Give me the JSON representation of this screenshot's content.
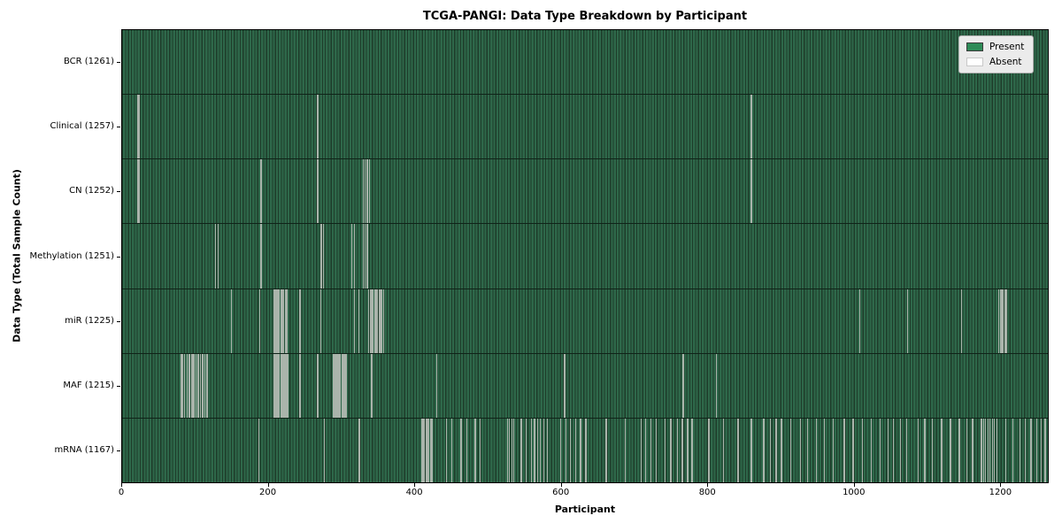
{
  "chart_data": {
    "type": "heatmap",
    "title": "TCGA-PANGI: Data Type Breakdown by Participant",
    "xlabel": "Participant",
    "ylabel": "Data Type (Total Sample Count)",
    "x_ticks": [
      0,
      200,
      400,
      600,
      800,
      1000,
      1200
    ],
    "x_axis_max": 1266,
    "total_participants": 1261,
    "grid": false,
    "legend": {
      "position": "upper right",
      "items": [
        {
          "label": "Present",
          "color": "#2e8b57",
          "border": "#3a3a3a"
        },
        {
          "label": "Absent",
          "color": "#ffffff",
          "border": "#c8c8c8"
        }
      ]
    },
    "colors": {
      "present_fill": "#2e684a",
      "cell_edge": "#1e3c2a",
      "row_divider": "#0f2318",
      "absent_stripe": "#aab4ab",
      "plot_border": "#000000",
      "legend_bg": "#ebebeb"
    },
    "rows": [
      {
        "label": "BCR (1261)",
        "data_type": "BCR",
        "sample_count": 1261,
        "absent_participants": []
      },
      {
        "label": "Clinical (1257)",
        "data_type": "Clinical",
        "sample_count": 1257,
        "absent_participants": [
          20,
          22,
          266,
          858
        ]
      },
      {
        "label": "CN (1252)",
        "data_type": "CN",
        "sample_count": 1252,
        "absent_participants": [
          20,
          22,
          189,
          266,
          328,
          331,
          334,
          337,
          858
        ]
      },
      {
        "label": "Methylation (1251)",
        "data_type": "Methylation",
        "sample_count": 1251,
        "absent_participants": [
          127,
          130,
          189,
          271,
          274,
          313,
          316,
          328,
          331,
          334
        ]
      },
      {
        "label": "miR (1225)",
        "data_type": "miR",
        "sample_count": 1225,
        "absent_participants": [
          148,
          187,
          206,
          208,
          210,
          212,
          214,
          216,
          218,
          220,
          222,
          224,
          242,
          270,
          316,
          322,
          336,
          338,
          340,
          342,
          344,
          346,
          348,
          350,
          352,
          354,
          356,
          1006,
          1071,
          1145,
          1196,
          1198,
          1200,
          1202,
          1204,
          1206
        ]
      },
      {
        "label": "MAF (1215)",
        "data_type": "MAF",
        "sample_count": 1215,
        "absent_participants": [
          80,
          82,
          84,
          88,
          91,
          94,
          96,
          97,
          100,
          103,
          106,
          109,
          112,
          115,
          206,
          207,
          208,
          210,
          212,
          214,
          216,
          218,
          220,
          221,
          222,
          224,
          226,
          242,
          266,
          287,
          289,
          291,
          292,
          293,
          295,
          297,
          299,
          300,
          301,
          303,
          305,
          340,
          429,
          603,
          765,
          810
        ]
      },
      {
        "label": "mRNA (1167)",
        "data_type": "mRNA",
        "sample_count": 1167,
        "absent_participants": [
          186,
          275,
          323,
          408,
          410,
          412,
          414,
          416,
          418,
          420,
          422,
          442,
          449,
          462,
          470,
          481,
          488,
          525,
          528,
          531,
          534,
          544,
          551,
          558,
          562,
          566,
          570,
          575,
          580,
          598,
          605,
          611,
          618,
          625,
          632,
          660,
          686,
          708,
          714,
          721,
          728,
          740,
          748,
          757,
          764,
          771,
          777,
          800,
          820,
          840,
          858,
          875,
          884,
          892,
          899,
          912,
          925,
          935,
          947,
          958,
          970,
          985,
          997,
          1010,
          1022,
          1034,
          1045,
          1052,
          1062,
          1070,
          1086,
          1095,
          1105,
          1118,
          1130,
          1142,
          1152,
          1160,
          1172,
          1175,
          1178,
          1181,
          1184,
          1187,
          1190,
          1193,
          1205,
          1215,
          1225,
          1232,
          1240,
          1248,
          1254,
          1259
        ]
      }
    ]
  }
}
